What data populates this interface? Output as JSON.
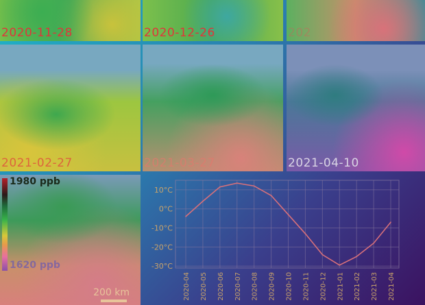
{
  "panels": [
    {
      "date": "2020-11-28"
    },
    {
      "date": "2020-12-26"
    },
    {
      "date": "202"
    },
    {
      "date": "2021-02-27"
    },
    {
      "date": "2021-03-27"
    },
    {
      "date": "2021-04-10"
    }
  ],
  "legend": {
    "max_label": "1980 ppb",
    "min_label": "1620 ppb"
  },
  "scale": {
    "label": "200 km"
  },
  "colors": {
    "line": "#d8707a",
    "axis_text": "#c9a36a",
    "grid": "#8a7aa0"
  },
  "chart_data": {
    "type": "line",
    "categories": [
      "2020-04",
      "2020-05",
      "2020-06",
      "2020-07",
      "2020-08",
      "2020-09",
      "2020-10",
      "2020-11",
      "2020-12",
      "2021-01",
      "2021-02",
      "2021-03",
      "2021-04"
    ],
    "values": [
      -4,
      4,
      11.5,
      13.5,
      12,
      7,
      -3,
      -13,
      -24,
      -29.5,
      -25,
      -18,
      -7
    ],
    "yticks": [
      10,
      0,
      -10,
      -20,
      -30
    ],
    "ytick_labels": [
      "10°C",
      "0°C",
      "-10°C",
      "-20°C",
      "-30°C"
    ],
    "ylim": [
      -31,
      15
    ],
    "grid": true
  }
}
